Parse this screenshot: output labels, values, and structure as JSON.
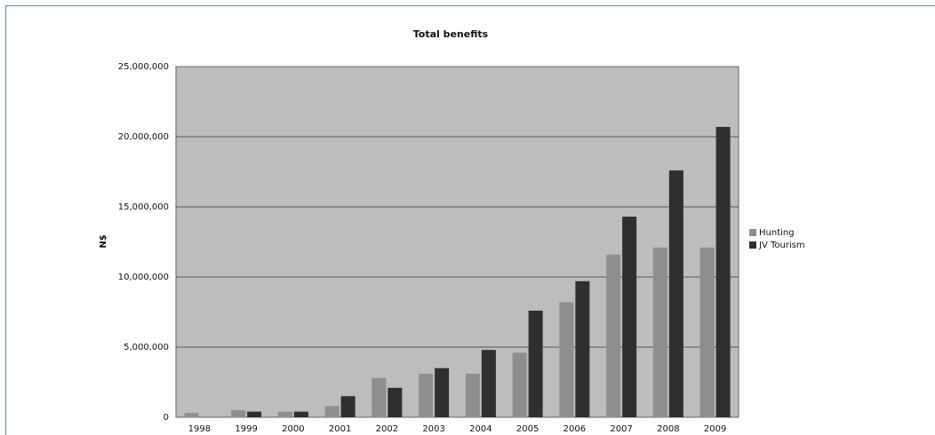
{
  "chart_data": {
    "type": "bar",
    "title": "Total benefits",
    "ylabel": "N$",
    "xlabel": "",
    "categories": [
      "1998",
      "1999",
      "2000",
      "2001",
      "2002",
      "2003",
      "2004",
      "2005",
      "2006",
      "2007",
      "2008",
      "2009"
    ],
    "series": [
      {
        "name": "Hunting",
        "color": "#8e8e8e",
        "values": [
          300000,
          500000,
          400000,
          800000,
          2800000,
          3100000,
          3100000,
          4600000,
          8200000,
          11600000,
          12100000,
          12100000
        ]
      },
      {
        "name": "JV Tourism",
        "color": "#2f2f2f",
        "values": [
          0,
          400000,
          400000,
          1500000,
          2100000,
          3500000,
          4800000,
          7600000,
          9700000,
          14300000,
          17600000,
          20700000
        ]
      }
    ],
    "ylim": [
      0,
      25000000
    ],
    "yticks": [
      0,
      5000000,
      10000000,
      15000000,
      20000000,
      25000000
    ],
    "ytick_labels": [
      "0",
      "5,000,000",
      "10,000,000",
      "15,000,000",
      "20,000,000",
      "25,000,000"
    ],
    "grid": true,
    "legend_position": "right"
  }
}
